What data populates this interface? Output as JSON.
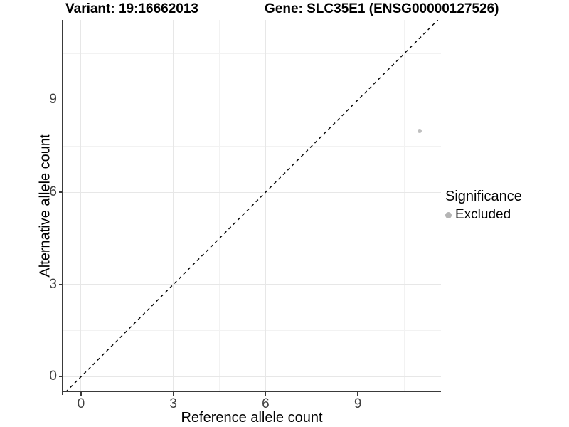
{
  "chart_data": {
    "type": "scatter",
    "title_variant": "Variant: 19:16662013",
    "title_gene": "Gene: SLC35E1 (ENSG00000127526)",
    "xlabel": "Reference allele count",
    "ylabel": "Alternative allele count",
    "x_ticks": [
      0,
      3,
      6,
      9
    ],
    "y_ticks": [
      0,
      3,
      6,
      9
    ],
    "xlim": [
      -0.6,
      11.7
    ],
    "ylim": [
      -0.5,
      11.6
    ],
    "grid": {
      "major": true,
      "minor": true,
      "major_color": "#e7e7e7",
      "minor_color": "#f2f2f2"
    },
    "identity_line": {
      "equation": "y = x",
      "style": "dashed",
      "color": "#000000"
    },
    "points": [
      {
        "x": 11,
        "y": 8,
        "significance": "Excluded",
        "color": "#bfbfbf"
      }
    ],
    "legend": {
      "position": "right",
      "title": "Significance",
      "entries": [
        {
          "label": "Excluded",
          "color": "#b5b5b5"
        }
      ]
    }
  }
}
